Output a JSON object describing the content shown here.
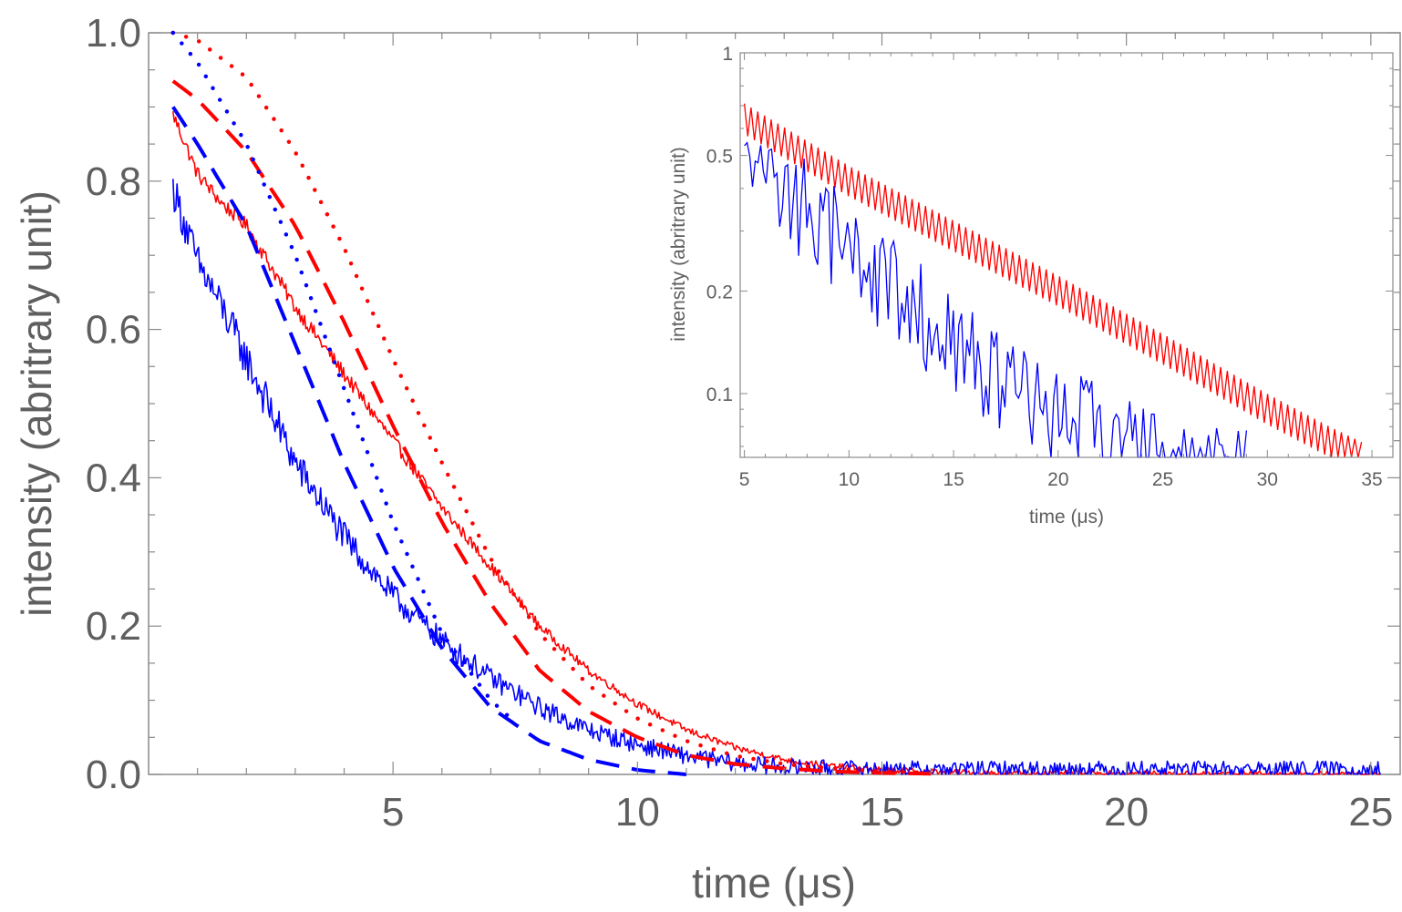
{
  "chart_data": [
    {
      "type": "line",
      "panel": "main",
      "title": "",
      "xlabel": "time (μs)",
      "ylabel": "intensity (abritrary unit)",
      "xlim": [
        0.0,
        25.6
      ],
      "ylim": [
        0.0,
        1.0
      ],
      "xticks": [
        5,
        10,
        15,
        20,
        25
      ],
      "xtick_labels": [
        "5",
        "10",
        "15",
        "20",
        "25"
      ],
      "yticks": [
        0.0,
        0.2,
        0.4,
        0.6,
        0.8,
        1.0
      ],
      "ytick_labels": [
        "0.0",
        "0.2",
        "0.4",
        "0.6",
        "0.8",
        "1.0"
      ],
      "grid": false,
      "legend": "none",
      "series": [
        {
          "name": "red measured",
          "color": "#ff0000",
          "style": "solid",
          "x": [
            0.5,
            1,
            1.5,
            2,
            3,
            4,
            5,
            6,
            7,
            8,
            9,
            10,
            11,
            12,
            13,
            14,
            15,
            17,
            20,
            25,
            25.2
          ],
          "y": [
            0.89,
            0.81,
            0.77,
            0.74,
            0.63,
            0.54,
            0.45,
            0.36,
            0.28,
            0.2,
            0.14,
            0.095,
            0.06,
            0.036,
            0.02,
            0.011,
            0.006,
            0.002,
            0.001,
            0.0,
            0.0
          ]
        },
        {
          "name": "blue measured",
          "color": "#0000ff",
          "style": "solid",
          "x": [
            0.5,
            1,
            1.5,
            2,
            3,
            4,
            5,
            6,
            7,
            8,
            9,
            10,
            11,
            12,
            13,
            14,
            15,
            17,
            20,
            25,
            25.2
          ],
          "y": [
            0.79,
            0.69,
            0.63,
            0.56,
            0.42,
            0.32,
            0.24,
            0.18,
            0.13,
            0.09,
            0.06,
            0.04,
            0.025,
            0.015,
            0.01,
            0.008,
            0.007,
            0.007,
            0.007,
            0.007,
            0.007
          ]
        },
        {
          "name": "red dashed",
          "color": "#ff0000",
          "style": "dashed",
          "x": [
            0.5,
            1,
            2,
            3,
            4,
            5,
            6,
            7,
            8,
            9,
            10,
            11,
            12,
            13,
            14,
            15,
            16
          ],
          "y": [
            0.935,
            0.91,
            0.84,
            0.74,
            0.61,
            0.47,
            0.34,
            0.23,
            0.14,
            0.085,
            0.05,
            0.026,
            0.014,
            0.008,
            0.004,
            0.002,
            0.001
          ]
        },
        {
          "name": "blue dashed",
          "color": "#0000ff",
          "style": "dashed",
          "x": [
            0.5,
            1,
            2,
            3,
            4,
            5,
            6,
            7,
            8,
            9,
            10,
            11
          ],
          "y": [
            0.9,
            0.85,
            0.74,
            0.58,
            0.42,
            0.28,
            0.17,
            0.09,
            0.045,
            0.02,
            0.006,
            0.0
          ]
        },
        {
          "name": "red dotted",
          "color": "#ff0000",
          "style": "dotted",
          "x": [
            0.5,
            1,
            2,
            3,
            4,
            5,
            6,
            7,
            8,
            9,
            10,
            11,
            12,
            13,
            14,
            15,
            16
          ],
          "y": [
            1.0,
            0.99,
            0.94,
            0.84,
            0.71,
            0.56,
            0.42,
            0.29,
            0.19,
            0.12,
            0.075,
            0.045,
            0.025,
            0.014,
            0.008,
            0.004,
            0.002
          ]
        },
        {
          "name": "blue dotted",
          "color": "#0000ff",
          "style": "dotted",
          "x": [
            0.5,
            1,
            2,
            3,
            4,
            5,
            6,
            7,
            7.5
          ],
          "y": [
            1.0,
            0.96,
            0.85,
            0.7,
            0.52,
            0.34,
            0.19,
            0.1,
            0.07
          ]
        }
      ]
    },
    {
      "type": "line",
      "panel": "inset",
      "title": "",
      "xlabel": "time (μs)",
      "ylabel": "intensity (abritrary unit)",
      "yscale": "log",
      "xlim": [
        4.8,
        36.0
      ],
      "ylim": [
        0.065,
        1.0
      ],
      "xticks": [
        5,
        10,
        15,
        20,
        25,
        30,
        35
      ],
      "xtick_labels": [
        "5",
        "10",
        "15",
        "20",
        "25",
        "30",
        "35"
      ],
      "yticks": [
        0.1,
        0.2,
        0.5,
        1.0
      ],
      "ytick_labels": [
        "0.1",
        "0.2",
        "0.5",
        "1"
      ],
      "grid": false,
      "legend": "none",
      "series": [
        {
          "name": "red measured (log)",
          "color": "#ff0000",
          "style": "solid",
          "x": [
            5,
            10,
            15,
            20,
            25,
            30,
            33,
            34.5
          ],
          "y": [
            0.64,
            0.42,
            0.29,
            0.2,
            0.135,
            0.09,
            0.072,
            0.065
          ]
        },
        {
          "name": "blue measured (log)",
          "color": "#0000ff",
          "style": "solid",
          "x": [
            5,
            7,
            10,
            12,
            15,
            17,
            20,
            22,
            25,
            27,
            29
          ],
          "y": [
            0.58,
            0.45,
            0.3,
            0.24,
            0.16,
            0.13,
            0.1,
            0.085,
            0.075,
            0.07,
            0.066
          ]
        }
      ]
    }
  ]
}
